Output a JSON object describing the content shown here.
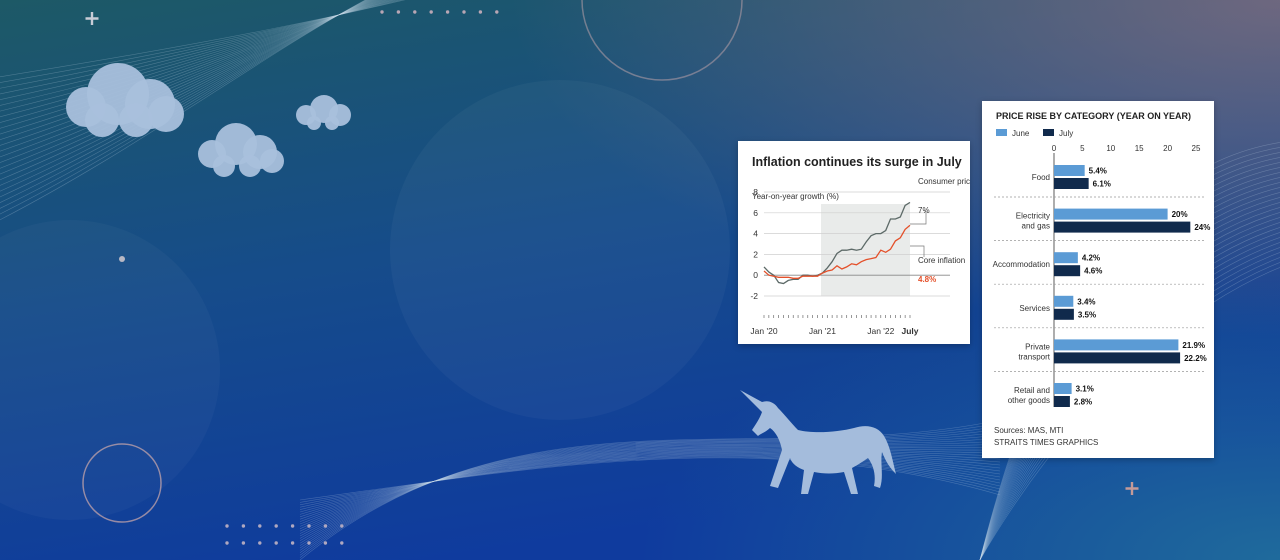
{
  "colors": {
    "bg_top": "#195260",
    "bg_mid": "#174c8c",
    "bg_bottom": "#103c9c",
    "cloud": "#a9c0dc",
    "cpi_line": "#5d6a68",
    "core_line": "#e4502a",
    "june_bar": "#5b9bd5",
    "july_bar": "#102a4c",
    "unicorn": "#a4bcdc"
  },
  "chart_data": [
    {
      "type": "line",
      "title": "Inflation continues its surge in July",
      "ylabel": "Year-on-year growth (%)",
      "ylim": [
        -2,
        8
      ],
      "yticks": [
        "8",
        "6",
        "4",
        "2",
        "0",
        "-2"
      ],
      "xticks": [
        "Jan '20",
        "Jan '21",
        "Jan '22",
        "July"
      ],
      "x": [
        "2020-01",
        "2020-02",
        "2020-03",
        "2020-04",
        "2020-05",
        "2020-06",
        "2020-07",
        "2020-08",
        "2020-09",
        "2020-10",
        "2020-11",
        "2020-12",
        "2021-01",
        "2021-02",
        "2021-03",
        "2021-04",
        "2021-05",
        "2021-06",
        "2021-07",
        "2021-08",
        "2021-09",
        "2021-10",
        "2021-11",
        "2021-12",
        "2022-01",
        "2022-02",
        "2022-03",
        "2022-04",
        "2022-05",
        "2022-06",
        "2022-07"
      ],
      "series": [
        {
          "name": "Consumer price index for all items",
          "annotation": "7%",
          "values": [
            0.8,
            0.3,
            0.0,
            -0.7,
            -0.8,
            -0.5,
            -0.4,
            -0.4,
            0.0,
            0.0,
            -0.1,
            0.0,
            0.2,
            0.7,
            1.3,
            2.1,
            2.4,
            2.4,
            2.5,
            2.4,
            2.5,
            3.2,
            3.8,
            4.0,
            4.0,
            4.3,
            5.4,
            5.4,
            5.6,
            6.7,
            7.0
          ]
        },
        {
          "name": "Core inflation",
          "annotation": "4.8%",
          "values": [
            0.4,
            0.0,
            -0.1,
            -0.2,
            -0.2,
            -0.2,
            -0.3,
            -0.3,
            -0.1,
            -0.1,
            -0.1,
            -0.1,
            0.2,
            0.4,
            0.5,
            0.9,
            0.6,
            0.8,
            1.1,
            1.0,
            1.3,
            1.5,
            1.6,
            1.7,
            2.4,
            2.2,
            2.5,
            3.3,
            3.6,
            4.4,
            4.8
          ]
        }
      ],
      "shaded_region": "Jan '21 – July",
      "grid": true
    },
    {
      "type": "bar",
      "orientation": "horizontal",
      "title": "PRICE RISE BY CATEGORY (YEAR ON YEAR)",
      "categories": [
        "Food",
        "Electricity\nand gas",
        "Accommodation",
        "Services",
        "Private\ntransport",
        "Retail and\nother goods"
      ],
      "series": [
        {
          "name": "June",
          "values": [
            5.4,
            20,
            4.2,
            3.4,
            21.9,
            3.1
          ],
          "labels": [
            "5.4%",
            "20%",
            "4.2%",
            "3.4%",
            "21.9%",
            "3.1%"
          ]
        },
        {
          "name": "July",
          "values": [
            6.1,
            24,
            4.6,
            3.5,
            22.2,
            2.8
          ],
          "labels": [
            "6.1%",
            "24%",
            "4.6%",
            "3.5%",
            "22.2%",
            "2.8%"
          ]
        }
      ],
      "xlim": [
        0,
        25
      ],
      "xticks": [
        "0",
        "5",
        "10",
        "15",
        "20",
        "25"
      ],
      "legend": "top-left",
      "sources": "Sources: MAS, MTI",
      "credit": "STRAITS TIMES GRAPHICS"
    }
  ]
}
